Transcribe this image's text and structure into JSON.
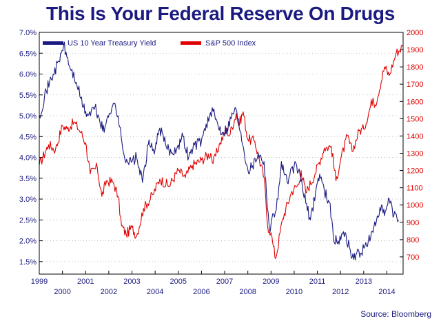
{
  "chart_data": {
    "type": "line",
    "title": "This Is Your Federal Reserve On Drugs",
    "source": "Source: Bloomberg",
    "x_range": [
      1999,
      2014.7
    ],
    "x_ticks_upper": [
      "1999",
      "2001",
      "2003",
      "2005",
      "2007",
      "2009",
      "2011",
      "2013"
    ],
    "x_ticks_lower": [
      "2000",
      "2002",
      "2004",
      "2006",
      "2008",
      "2010",
      "2012",
      "2014"
    ],
    "y_left": {
      "label": "US 10 Year Treasury Yield",
      "ylim": [
        1.2,
        7.0
      ],
      "ticks": [
        "7.0%",
        "6.5%",
        "6.0%",
        "5.5%",
        "5.0%",
        "4.5%",
        "4.0%",
        "3.5%",
        "3.0%",
        "2.5%",
        "2.0%",
        "1.5%"
      ],
      "tick_values": [
        7.0,
        6.5,
        6.0,
        5.5,
        5.0,
        4.5,
        4.0,
        3.5,
        3.0,
        2.5,
        2.0,
        1.5
      ]
    },
    "y_right": {
      "label": "S&P 500 Index",
      "ylim": [
        600,
        2000
      ],
      "ticks": [
        "2000",
        "1900",
        "1800",
        "1700",
        "1600",
        "1500",
        "1400",
        "1300",
        "1200",
        "1100",
        "1000",
        "900",
        "800",
        "700"
      ],
      "tick_values": [
        2000,
        1900,
        1800,
        1700,
        1600,
        1500,
        1400,
        1300,
        1200,
        1100,
        1000,
        900,
        800,
        700
      ]
    },
    "series": [
      {
        "name": "US 10 Year Treasury Yield",
        "axis": "left",
        "color": "#1a1a80",
        "x": [
          1999.0,
          1999.3,
          1999.6,
          1999.85,
          2000.05,
          2000.3,
          2000.6,
          2000.9,
          2001.1,
          2001.4,
          2001.6,
          2001.8,
          2001.95,
          2002.2,
          2002.4,
          2002.6,
          2002.8,
          2003.0,
          2003.2,
          2003.45,
          2003.7,
          2004.0,
          2004.2,
          2004.45,
          2004.7,
          2005.0,
          2005.2,
          2005.45,
          2005.7,
          2006.0,
          2006.2,
          2006.5,
          2006.7,
          2006.9,
          2007.1,
          2007.45,
          2007.7,
          2008.0,
          2008.2,
          2008.45,
          2008.7,
          2008.95,
          2009.0,
          2009.3,
          2009.45,
          2009.7,
          2010.0,
          2010.25,
          2010.5,
          2010.7,
          2011.0,
          2011.1,
          2011.3,
          2011.55,
          2011.7,
          2011.9,
          2012.2,
          2012.5,
          2012.7,
          2012.9,
          2013.2,
          2013.4,
          2013.7,
          2013.9,
          2014.1,
          2014.3,
          2014.5
        ],
        "values": [
          5.0,
          5.6,
          6.0,
          6.3,
          6.7,
          6.2,
          5.8,
          5.2,
          5.0,
          5.2,
          4.9,
          4.6,
          5.0,
          5.3,
          5.0,
          4.2,
          3.9,
          3.9,
          4.0,
          3.4,
          4.3,
          4.2,
          4.7,
          4.3,
          4.1,
          4.3,
          4.5,
          4.0,
          4.3,
          4.4,
          4.8,
          5.1,
          4.8,
          4.6,
          4.7,
          5.2,
          4.6,
          3.7,
          3.8,
          4.1,
          3.9,
          2.2,
          2.4,
          3.0,
          3.9,
          3.4,
          3.8,
          3.6,
          2.9,
          2.5,
          3.4,
          3.6,
          3.2,
          2.9,
          2.0,
          2.0,
          2.2,
          1.6,
          1.7,
          1.7,
          2.0,
          2.2,
          2.8,
          2.6,
          3.0,
          2.6,
          2.5
        ]
      },
      {
        "name": "S&P 500 Index",
        "axis": "right",
        "color": "#e00000",
        "x": [
          1999.0,
          1999.4,
          1999.7,
          2000.0,
          2000.2,
          2000.5,
          2000.8,
          2001.0,
          2001.2,
          2001.5,
          2001.7,
          2001.9,
          2002.2,
          2002.4,
          2002.55,
          2002.75,
          2003.0,
          2003.2,
          2003.5,
          2003.9,
          2004.2,
          2004.6,
          2005.0,
          2005.3,
          2005.6,
          2006.0,
          2006.4,
          2006.5,
          2006.8,
          2007.1,
          2007.2,
          2007.5,
          2007.6,
          2007.8,
          2008.0,
          2008.3,
          2008.5,
          2008.7,
          2008.85,
          2009.0,
          2009.1,
          2009.2,
          2009.5,
          2009.9,
          2010.2,
          2010.3,
          2010.5,
          2010.9,
          2011.3,
          2011.6,
          2011.8,
          2012.0,
          2012.3,
          2012.5,
          2012.8,
          2013.0,
          2013.4,
          2013.5,
          2013.9,
          2014.1,
          2014.4,
          2014.7
        ],
        "values": [
          1230,
          1350,
          1320,
          1460,
          1440,
          1480,
          1420,
          1360,
          1180,
          1220,
          1050,
          1140,
          1130,
          1050,
          880,
          830,
          870,
          820,
          980,
          1060,
          1150,
          1110,
          1200,
          1160,
          1230,
          1260,
          1300,
          1240,
          1360,
          1440,
          1400,
          1530,
          1460,
          1540,
          1380,
          1370,
          1260,
          1160,
          880,
          840,
          760,
          690,
          920,
          1080,
          1120,
          1200,
          1070,
          1180,
          1330,
          1340,
          1140,
          1260,
          1400,
          1310,
          1430,
          1440,
          1620,
          1580,
          1800,
          1750,
          1880,
          1920
        ]
      }
    ]
  }
}
